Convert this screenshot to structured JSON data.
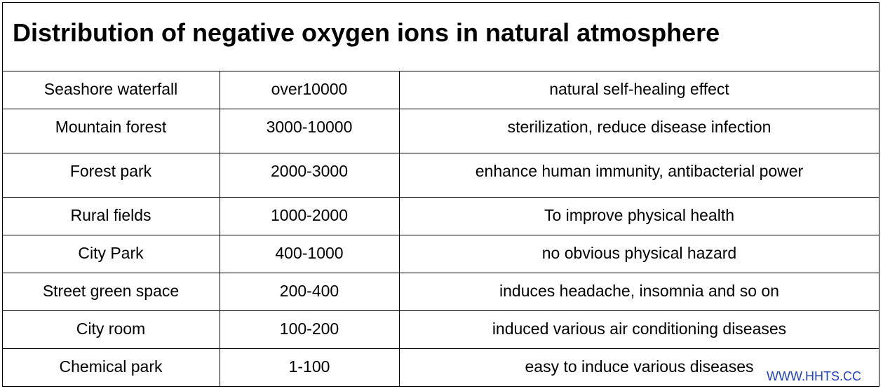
{
  "title": "Distribution of negative oxygen ions in natural atmosphere",
  "table": {
    "rows": [
      [
        "Seashore waterfall",
        "over10000",
        "natural self-healing effect"
      ],
      [
        "Mountain forest",
        "3000-10000",
        "sterilization, reduce disease infection"
      ],
      [
        "Forest park",
        "2000-3000",
        "enhance human immunity, antibacterial power"
      ],
      [
        "Rural fields",
        "1000-2000",
        "To improve physical health"
      ],
      [
        "City Park",
        "400-1000",
        "no obvious physical hazard"
      ],
      [
        "Street green space",
        "200-400",
        "induces headache, insomnia and so on"
      ],
      [
        "City room",
        "100-200",
        "induced various air conditioning diseases"
      ],
      [
        "Chemical park",
        "1-100",
        "easy to induce various diseases"
      ]
    ]
  },
  "watermark": "WWW.HHTS.CC"
}
